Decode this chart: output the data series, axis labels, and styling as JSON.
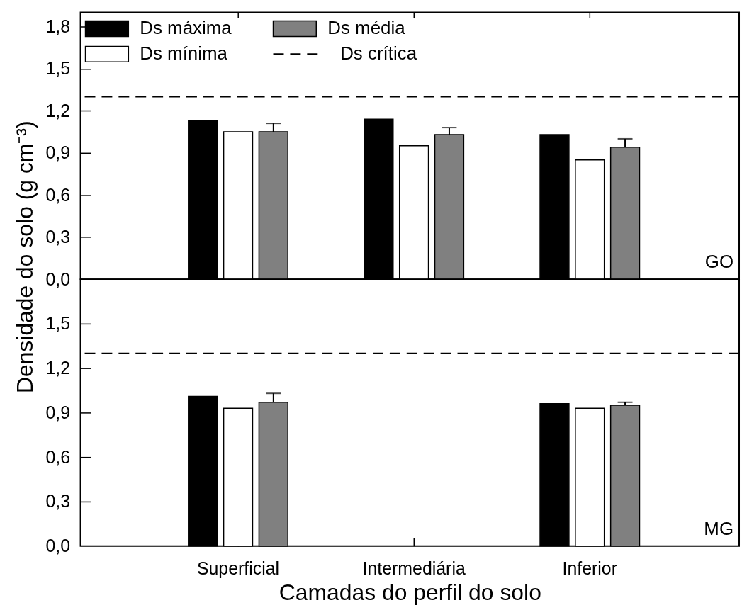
{
  "chart_data": [
    {
      "type": "bar",
      "categories": [
        "Superficial",
        "Intermediária",
        "Inferior"
      ],
      "series": [
        {
          "name": "Ds máxima",
          "color": "#000000",
          "values": [
            1.13,
            1.14,
            1.03
          ]
        },
        {
          "name": "Ds mínima",
          "color": "#ffffff",
          "values": [
            1.05,
            0.95,
            0.85
          ]
        },
        {
          "name": "Ds média",
          "color": "#808080",
          "values": [
            1.05,
            1.03,
            0.94
          ],
          "errors": [
            [
              1.05,
              1.11
            ],
            [
              1.03,
              1.08
            ],
            [
              0.94,
              1.0
            ]
          ]
        }
      ],
      "ylim": [
        0,
        1.9
      ],
      "yticks": [
        {
          "value": 0,
          "label": "0,0"
        },
        {
          "value": 0.3,
          "label": "0,3"
        },
        {
          "value": 0.6,
          "label": "0,6"
        },
        {
          "value": 0.9,
          "label": "0,9"
        },
        {
          "value": 1.2,
          "label": "1,2"
        },
        {
          "value": 1.5,
          "label": "1,5"
        },
        {
          "value": 1.8,
          "label": "1,8"
        }
      ],
      "ylabel": "Densidade do solo (g cm⁻³)",
      "ref_lines": [
        {
          "axis": "y",
          "value": 1.3,
          "label": "Ds crítica",
          "line_style": "dashed",
          "color": "#000000"
        }
      ],
      "legend": "top left",
      "tick_labels": "y",
      "annotations": [
        "GO"
      ]
    },
    {
      "type": "bar",
      "categories": [
        "Superficial",
        "Intermediária",
        "Inferior"
      ],
      "series": [
        {
          "color": "#000000",
          "values": [
            1.01,
            null,
            0.96
          ]
        },
        {
          "color": "#ffffff",
          "values": [
            0.93,
            null,
            0.93
          ]
        },
        {
          "color": "#808080",
          "values": [
            0.97,
            null,
            0.95
          ],
          "errors": [
            [
              0.97,
              1.03
            ],
            null,
            [
              0.95,
              0.97
            ]
          ]
        }
      ],
      "ylim": [
        0,
        1.8
      ],
      "yticks": [
        {
          "value": 0,
          "label": "0,0"
        },
        {
          "value": 0.3,
          "label": "0,3"
        },
        {
          "value": 0.6,
          "label": "0,6"
        },
        {
          "value": 0.9,
          "label": "0,9"
        },
        {
          "value": 1.2,
          "label": "1,2"
        },
        {
          "value": 1.5,
          "label": "1,5"
        }
      ],
      "xlabel": "Camadas do perfil do solo",
      "ref_lines": [
        {
          "axis": "y",
          "value": 1.3,
          "line_style": "dashed",
          "color": "#000000"
        }
      ],
      "annotations": [
        "MG"
      ]
    }
  ]
}
